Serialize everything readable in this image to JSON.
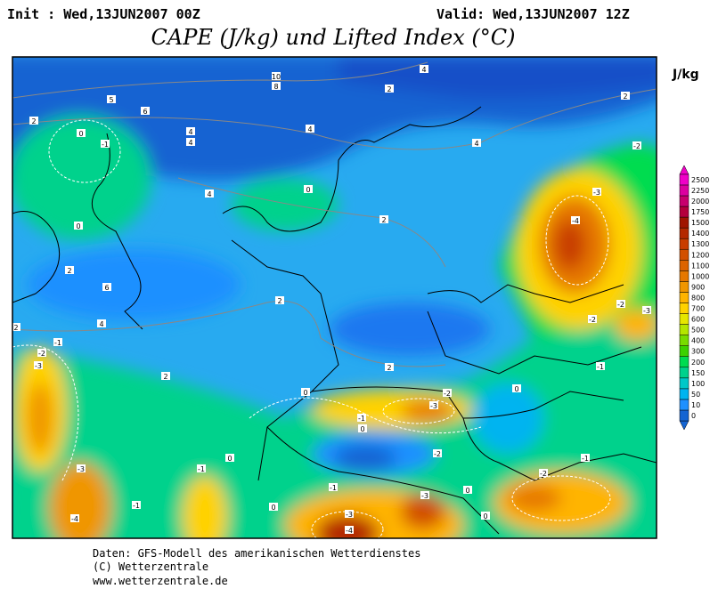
{
  "header": {
    "init": "Init : Wed,13JUN2007 00Z",
    "valid": "Valid: Wed,13JUN2007 12Z",
    "title": "CAPE (J/kg) und Lifted Index (°C)"
  },
  "colorbar": {
    "unit": "J/kg",
    "levels": [
      0,
      10,
      50,
      100,
      150,
      200,
      300,
      400,
      500,
      600,
      700,
      800,
      900,
      1000,
      1100,
      1200,
      1300,
      1400,
      1500,
      1750,
      2000,
      2250,
      2500
    ],
    "colors": [
      "#1464d2",
      "#1e90ff",
      "#00b4f0",
      "#00c8c8",
      "#00d28c",
      "#00dc50",
      "#3cd200",
      "#78dc00",
      "#b4e600",
      "#e6e600",
      "#ffd200",
      "#ffb400",
      "#f09600",
      "#e67800",
      "#dc6400",
      "#d25000",
      "#c83c00",
      "#b42800",
      "#a01400",
      "#b4003c",
      "#c8006e",
      "#dc00a0",
      "#f000c8"
    ]
  },
  "map": {
    "contour_labels": [
      "10",
      "8",
      "6",
      "5",
      "4",
      "4",
      "4",
      "4",
      "4",
      "4",
      "2",
      "2",
      "2",
      "2",
      "2",
      "2",
      "2",
      "2",
      "2",
      "4",
      "0",
      "-1",
      "0",
      "0",
      "6",
      "-2",
      "-3",
      "-4",
      "-2",
      "-2",
      "-3",
      "-1",
      "0",
      "-2",
      "-3",
      "-1",
      "0",
      "-2",
      "-1",
      "0",
      "-2",
      "-1",
      "-3",
      "-4",
      "-1",
      "0",
      "-1",
      "-3",
      "-3",
      "-4",
      "0",
      "0",
      "-3",
      "-2",
      "-1",
      "0"
    ]
  },
  "footer": {
    "lines": [
      "Daten: GFS-Modell des amerikanischen Wetterdienstes",
      "(C) Wetterzentrale",
      "www.wetterzentrale.de"
    ]
  }
}
